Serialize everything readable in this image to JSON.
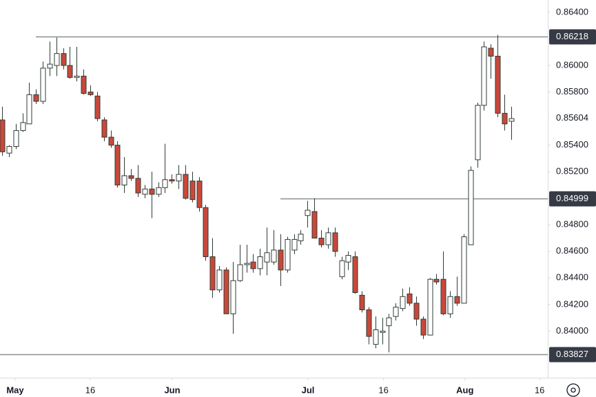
{
  "chart_data": {
    "type": "candlestick",
    "colors": {
      "up": "#ffffff",
      "down": "#c9483a",
      "outline": "#2f3b35",
      "level": "#8a8d93",
      "level_box": "#363a45"
    },
    "open": [
      0.8559,
      0.8534,
      0.8539,
      0.8551,
      0.8556,
      0.8578,
      0.8573,
      0.8598,
      0.86,
      0.8609,
      0.86,
      0.8591,
      0.8592,
      0.858,
      0.8577,
      0.8559,
      0.8546,
      0.854,
      0.851,
      0.8517,
      0.8515,
      0.8503,
      0.8507,
      0.8503,
      0.8508,
      0.8514,
      0.8513,
      0.8518,
      0.8513,
      0.8513,
      0.8493,
      0.8456,
      0.8431,
      0.8446,
      0.8413,
      0.8438,
      0.845,
      0.8452,
      0.8447,
      0.8452,
      0.8452,
      0.8461,
      0.8446,
      0.8461,
      0.8468,
      0.8487,
      0.849,
      0.847,
      0.8465,
      0.8474,
      0.8441,
      0.8452,
      0.8456,
      0.8427,
      0.8416,
      0.839,
      0.8399,
      0.8404,
      0.8411,
      0.8417,
      0.8428,
      0.8421,
      0.8409,
      0.8397,
      0.8439,
      0.8439,
      0.8413,
      0.8426,
      0.8421,
      0.8465,
      0.8529,
      0.857,
      0.8613,
      0.8607,
      0.8564,
      0.8558
    ],
    "high": [
      0.8569,
      0.854,
      0.8556,
      0.8564,
      0.8587,
      0.8582,
      0.8603,
      0.8618,
      0.8621,
      0.8613,
      0.8614,
      0.8614,
      0.8597,
      0.8585,
      0.858,
      0.8561,
      0.8551,
      0.8543,
      0.8531,
      0.8522,
      0.8525,
      0.851,
      0.852,
      0.8512,
      0.8541,
      0.8518,
      0.8525,
      0.8525,
      0.852,
      0.8516,
      0.8495,
      0.847,
      0.8449,
      0.8448,
      0.8452,
      0.8465,
      0.8465,
      0.8458,
      0.8462,
      0.8478,
      0.8476,
      0.8473,
      0.8471,
      0.8473,
      0.8476,
      0.8498,
      0.85,
      0.8476,
      0.8478,
      0.8478,
      0.8456,
      0.846,
      0.846,
      0.843,
      0.8418,
      0.8411,
      0.841,
      0.8413,
      0.8421,
      0.8432,
      0.8433,
      0.8426,
      0.8411,
      0.844,
      0.8443,
      0.846,
      0.843,
      0.8441,
      0.8473,
      0.8524,
      0.8572,
      0.8618,
      0.8616,
      0.8623,
      0.8578,
      0.8569
    ],
    "low": [
      0.8532,
      0.8531,
      0.8537,
      0.855,
      0.8556,
      0.8571,
      0.8571,
      0.8592,
      0.8592,
      0.8597,
      0.859,
      0.8588,
      0.8578,
      0.8577,
      0.8558,
      0.8543,
      0.8538,
      0.8508,
      0.8504,
      0.8513,
      0.8501,
      0.85,
      0.8485,
      0.8501,
      0.8504,
      0.8511,
      0.8507,
      0.8499,
      0.8497,
      0.849,
      0.8453,
      0.8425,
      0.8429,
      0.8413,
      0.8398,
      0.8437,
      0.8444,
      0.8444,
      0.8442,
      0.8442,
      0.845,
      0.8434,
      0.8444,
      0.8458,
      0.8465,
      0.8478,
      0.847,
      0.8463,
      0.8462,
      0.8456,
      0.8439,
      0.8446,
      0.8428,
      0.8414,
      0.839,
      0.8387,
      0.839,
      0.8384,
      0.8408,
      0.8415,
      0.8419,
      0.8404,
      0.8394,
      0.8397,
      0.8435,
      0.8412,
      0.841,
      0.8419,
      0.8421,
      0.8465,
      0.8523,
      0.8566,
      0.859,
      0.8561,
      0.8551,
      0.8544
    ],
    "close": [
      0.8535,
      0.8539,
      0.8551,
      0.8557,
      0.8578,
      0.8573,
      0.8598,
      0.8601,
      0.8609,
      0.86,
      0.8591,
      0.8592,
      0.8579,
      0.8578,
      0.856,
      0.8546,
      0.854,
      0.851,
      0.8517,
      0.8515,
      0.8504,
      0.8507,
      0.8503,
      0.8508,
      0.8514,
      0.8513,
      0.8518,
      0.85,
      0.8499,
      0.8493,
      0.8456,
      0.8431,
      0.8446,
      0.8413,
      0.8438,
      0.845,
      0.8451,
      0.8447,
      0.8456,
      0.8459,
      0.8461,
      0.8446,
      0.8469,
      0.8469,
      0.8473,
      0.8491,
      0.847,
      0.8465,
      0.8474,
      0.846,
      0.8453,
      0.8457,
      0.8429,
      0.8416,
      0.8396,
      0.8401,
      0.84,
      0.841,
      0.8418,
      0.8426,
      0.8421,
      0.8409,
      0.8397,
      0.8439,
      0.8437,
      0.8413,
      0.8426,
      0.8421,
      0.8471,
      0.8521,
      0.857,
      0.8614,
      0.8607,
      0.8564,
      0.8556,
      0.856
    ],
    "xlim": [
      -0.3,
      80.4
    ],
    "xticks": [
      {
        "value": 1.93,
        "label": "May"
      },
      {
        "value": 13.0,
        "label": "16"
      },
      {
        "value": 25.08,
        "label": "Jun"
      },
      {
        "value": 45.08,
        "label": "Jul"
      },
      {
        "value": 56.2,
        "label": "16"
      },
      {
        "value": 68.2,
        "label": "Aug"
      },
      {
        "value": 79.2,
        "label": "16"
      }
    ],
    "ylim": [
      0.83649,
      0.86493
    ],
    "yticks": [
      {
        "value": 0.864,
        "label": "0.86400"
      },
      {
        "value": 0.862,
        "label": "0.86200"
      },
      {
        "value": 0.86,
        "label": "0.86000"
      },
      {
        "value": 0.858,
        "label": "0.85800"
      },
      {
        "value": 0.856,
        "label": "0.85600"
      },
      {
        "value": 0.854,
        "label": "0.85400"
      },
      {
        "value": 0.852,
        "label": "0.85200"
      },
      {
        "value": 0.85,
        "label": "0.85000"
      },
      {
        "value": 0.848,
        "label": "0.84800"
      },
      {
        "value": 0.846,
        "label": "0.84600"
      },
      {
        "value": 0.844,
        "label": "0.84400"
      },
      {
        "value": 0.842,
        "label": "0.84200"
      },
      {
        "value": 0.84,
        "label": "0.84000"
      }
    ],
    "levels": [
      0.86218,
      0.84999,
      0.83827
    ],
    "last_price": 0.85604
  }
}
